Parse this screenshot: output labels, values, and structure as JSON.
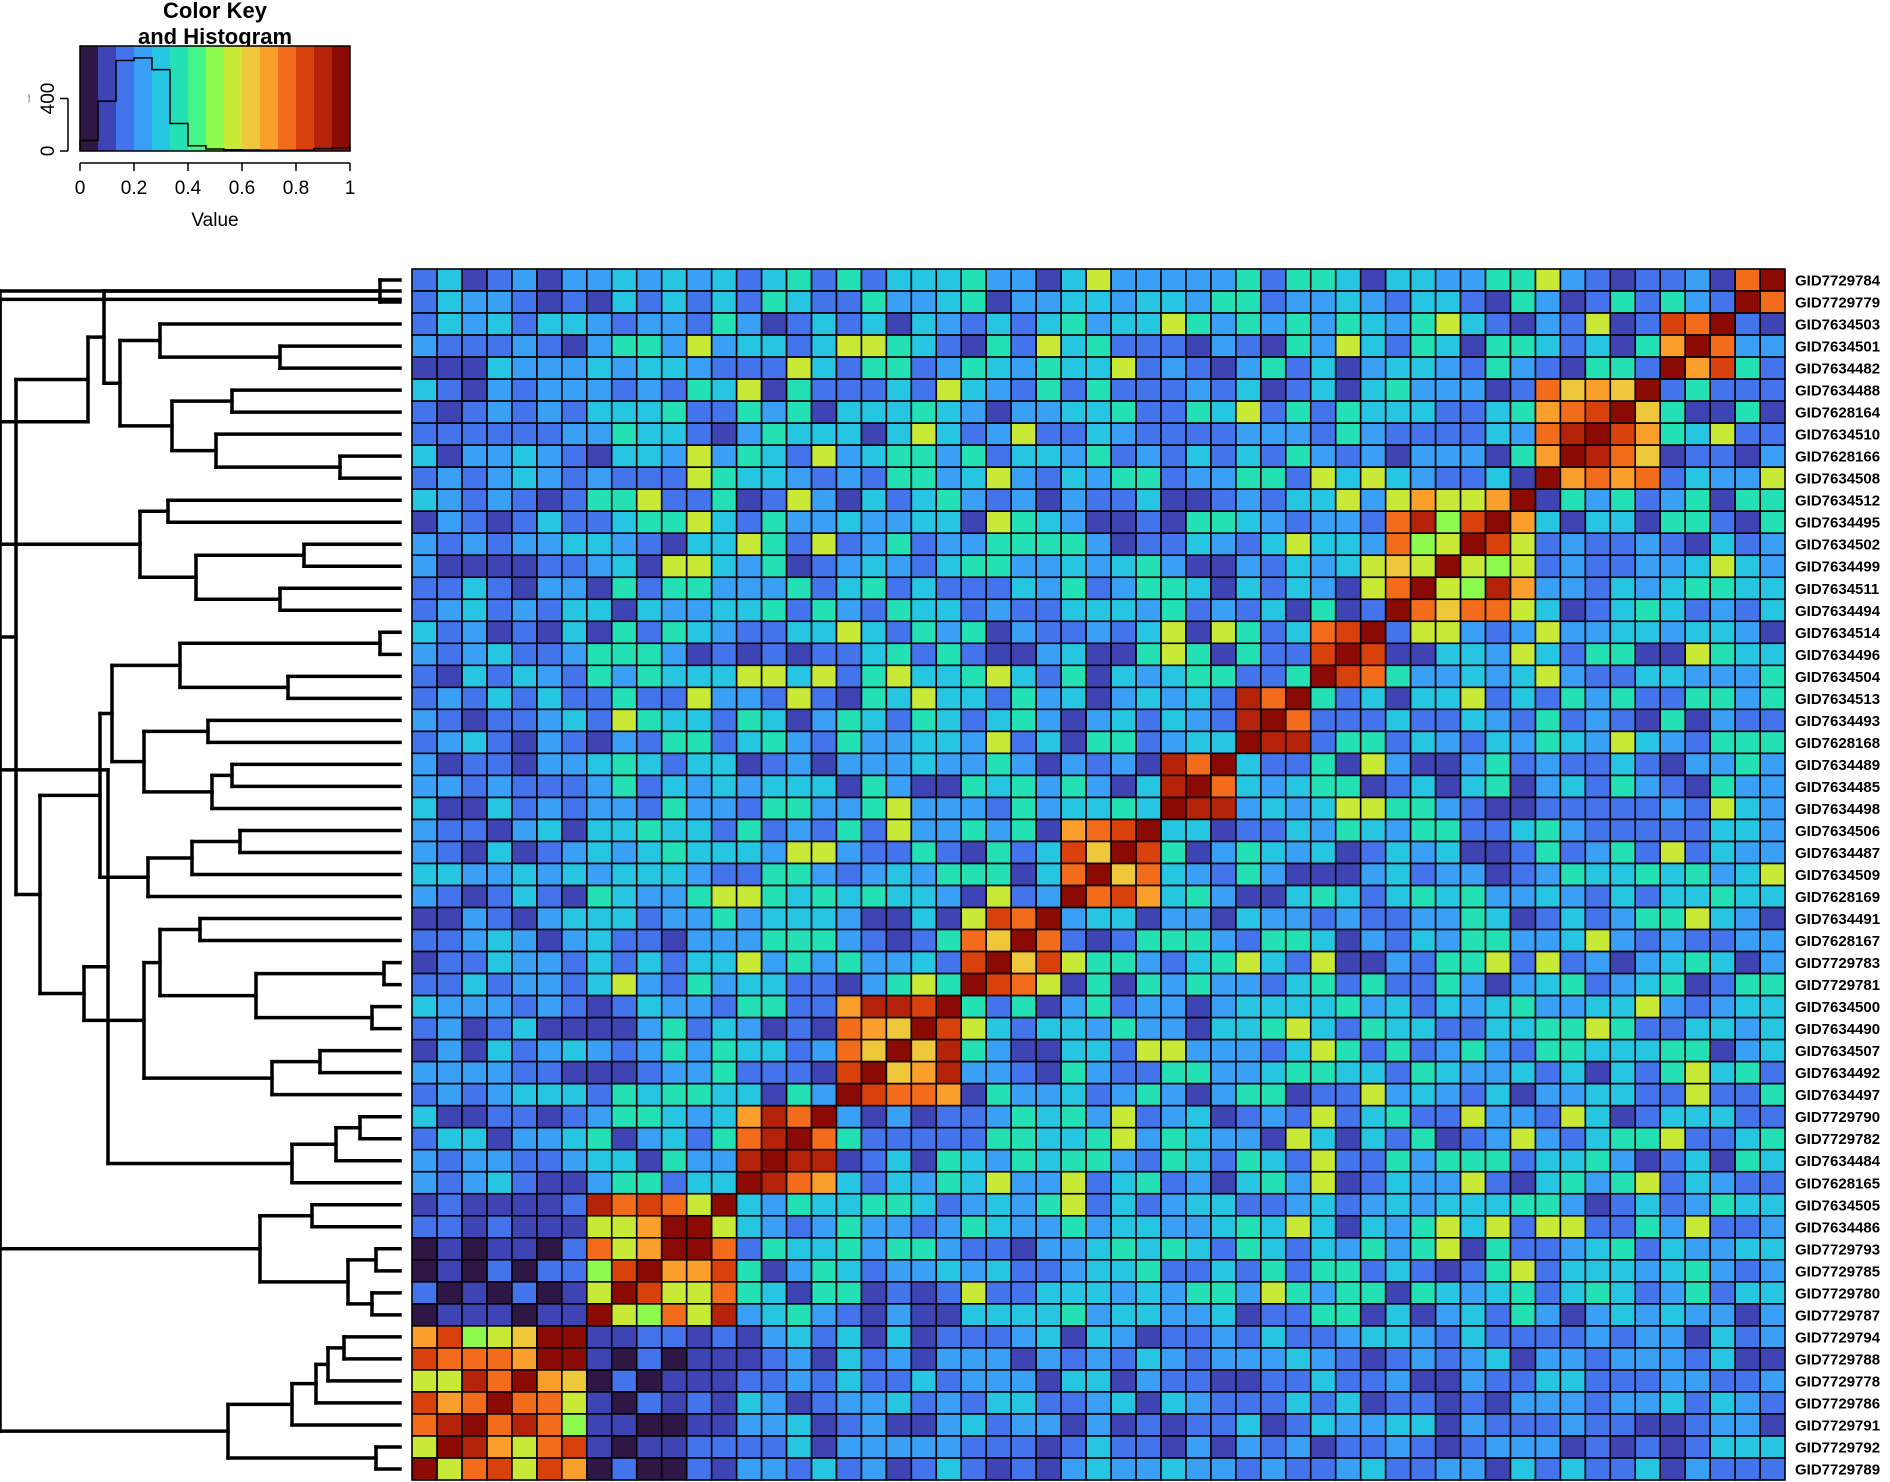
{
  "chart_data": {
    "type": "heatmap",
    "key": {
      "title_line1": "Color Key",
      "title_line2": "and Histogram",
      "xlabel": "Value",
      "xticks": [
        "0",
        "0.2",
        "0.4",
        "0.6",
        "0.8",
        "1"
      ],
      "ylabel": "Count",
      "yticks": [
        "0",
        "400"
      ],
      "histogram_counts": [
        80,
        380,
        690,
        710,
        620,
        210,
        40,
        15,
        10,
        8,
        6,
        5,
        6,
        18,
        25
      ],
      "palette": [
        "#2e1745",
        "#3f44b4",
        "#4474ec",
        "#3aa0f5",
        "#26c6e3",
        "#23e0b5",
        "#45f58a",
        "#8dfb4d",
        "#c8ea36",
        "#eec83a",
        "#fb9f2c",
        "#f26c1c",
        "#d9410c",
        "#b5220a",
        "#8b0a04"
      ]
    },
    "rows": [
      "GID7729784",
      "GID7729779",
      "GID7634503",
      "GID7634501",
      "GID7634482",
      "GID7634488",
      "GID7628164",
      "GID7634510",
      "GID7628166",
      "GID7634508",
      "GID7634512",
      "GID7634495",
      "GID7634502",
      "GID7634499",
      "GID7634511",
      "GID7634494",
      "GID7634514",
      "GID7634496",
      "GID7634504",
      "GID7634513",
      "GID7634493",
      "GID7628168",
      "GID7634489",
      "GID7634485",
      "GID7634498",
      "GID7634506",
      "GID7634487",
      "GID7634509",
      "GID7628169",
      "GID7634491",
      "GID7628167",
      "GID7729783",
      "GID7729781",
      "GID7634500",
      "GID7634490",
      "GID7634507",
      "GID7634492",
      "GID7634497",
      "GID7729790",
      "GID7729782",
      "GID7634484",
      "GID7628165",
      "GID7634505",
      "GID7634486",
      "GID7729793",
      "GID7729785",
      "GID7729780",
      "GID7729787",
      "GID7729794",
      "GID7729788",
      "GID7729778",
      "GID7729786",
      "GID7729791",
      "GID7729792",
      "GID7729789"
    ],
    "value_range": [
      0,
      1
    ],
    "legend_position": "top-left",
    "dendrogram": "rows",
    "grid": true
  }
}
